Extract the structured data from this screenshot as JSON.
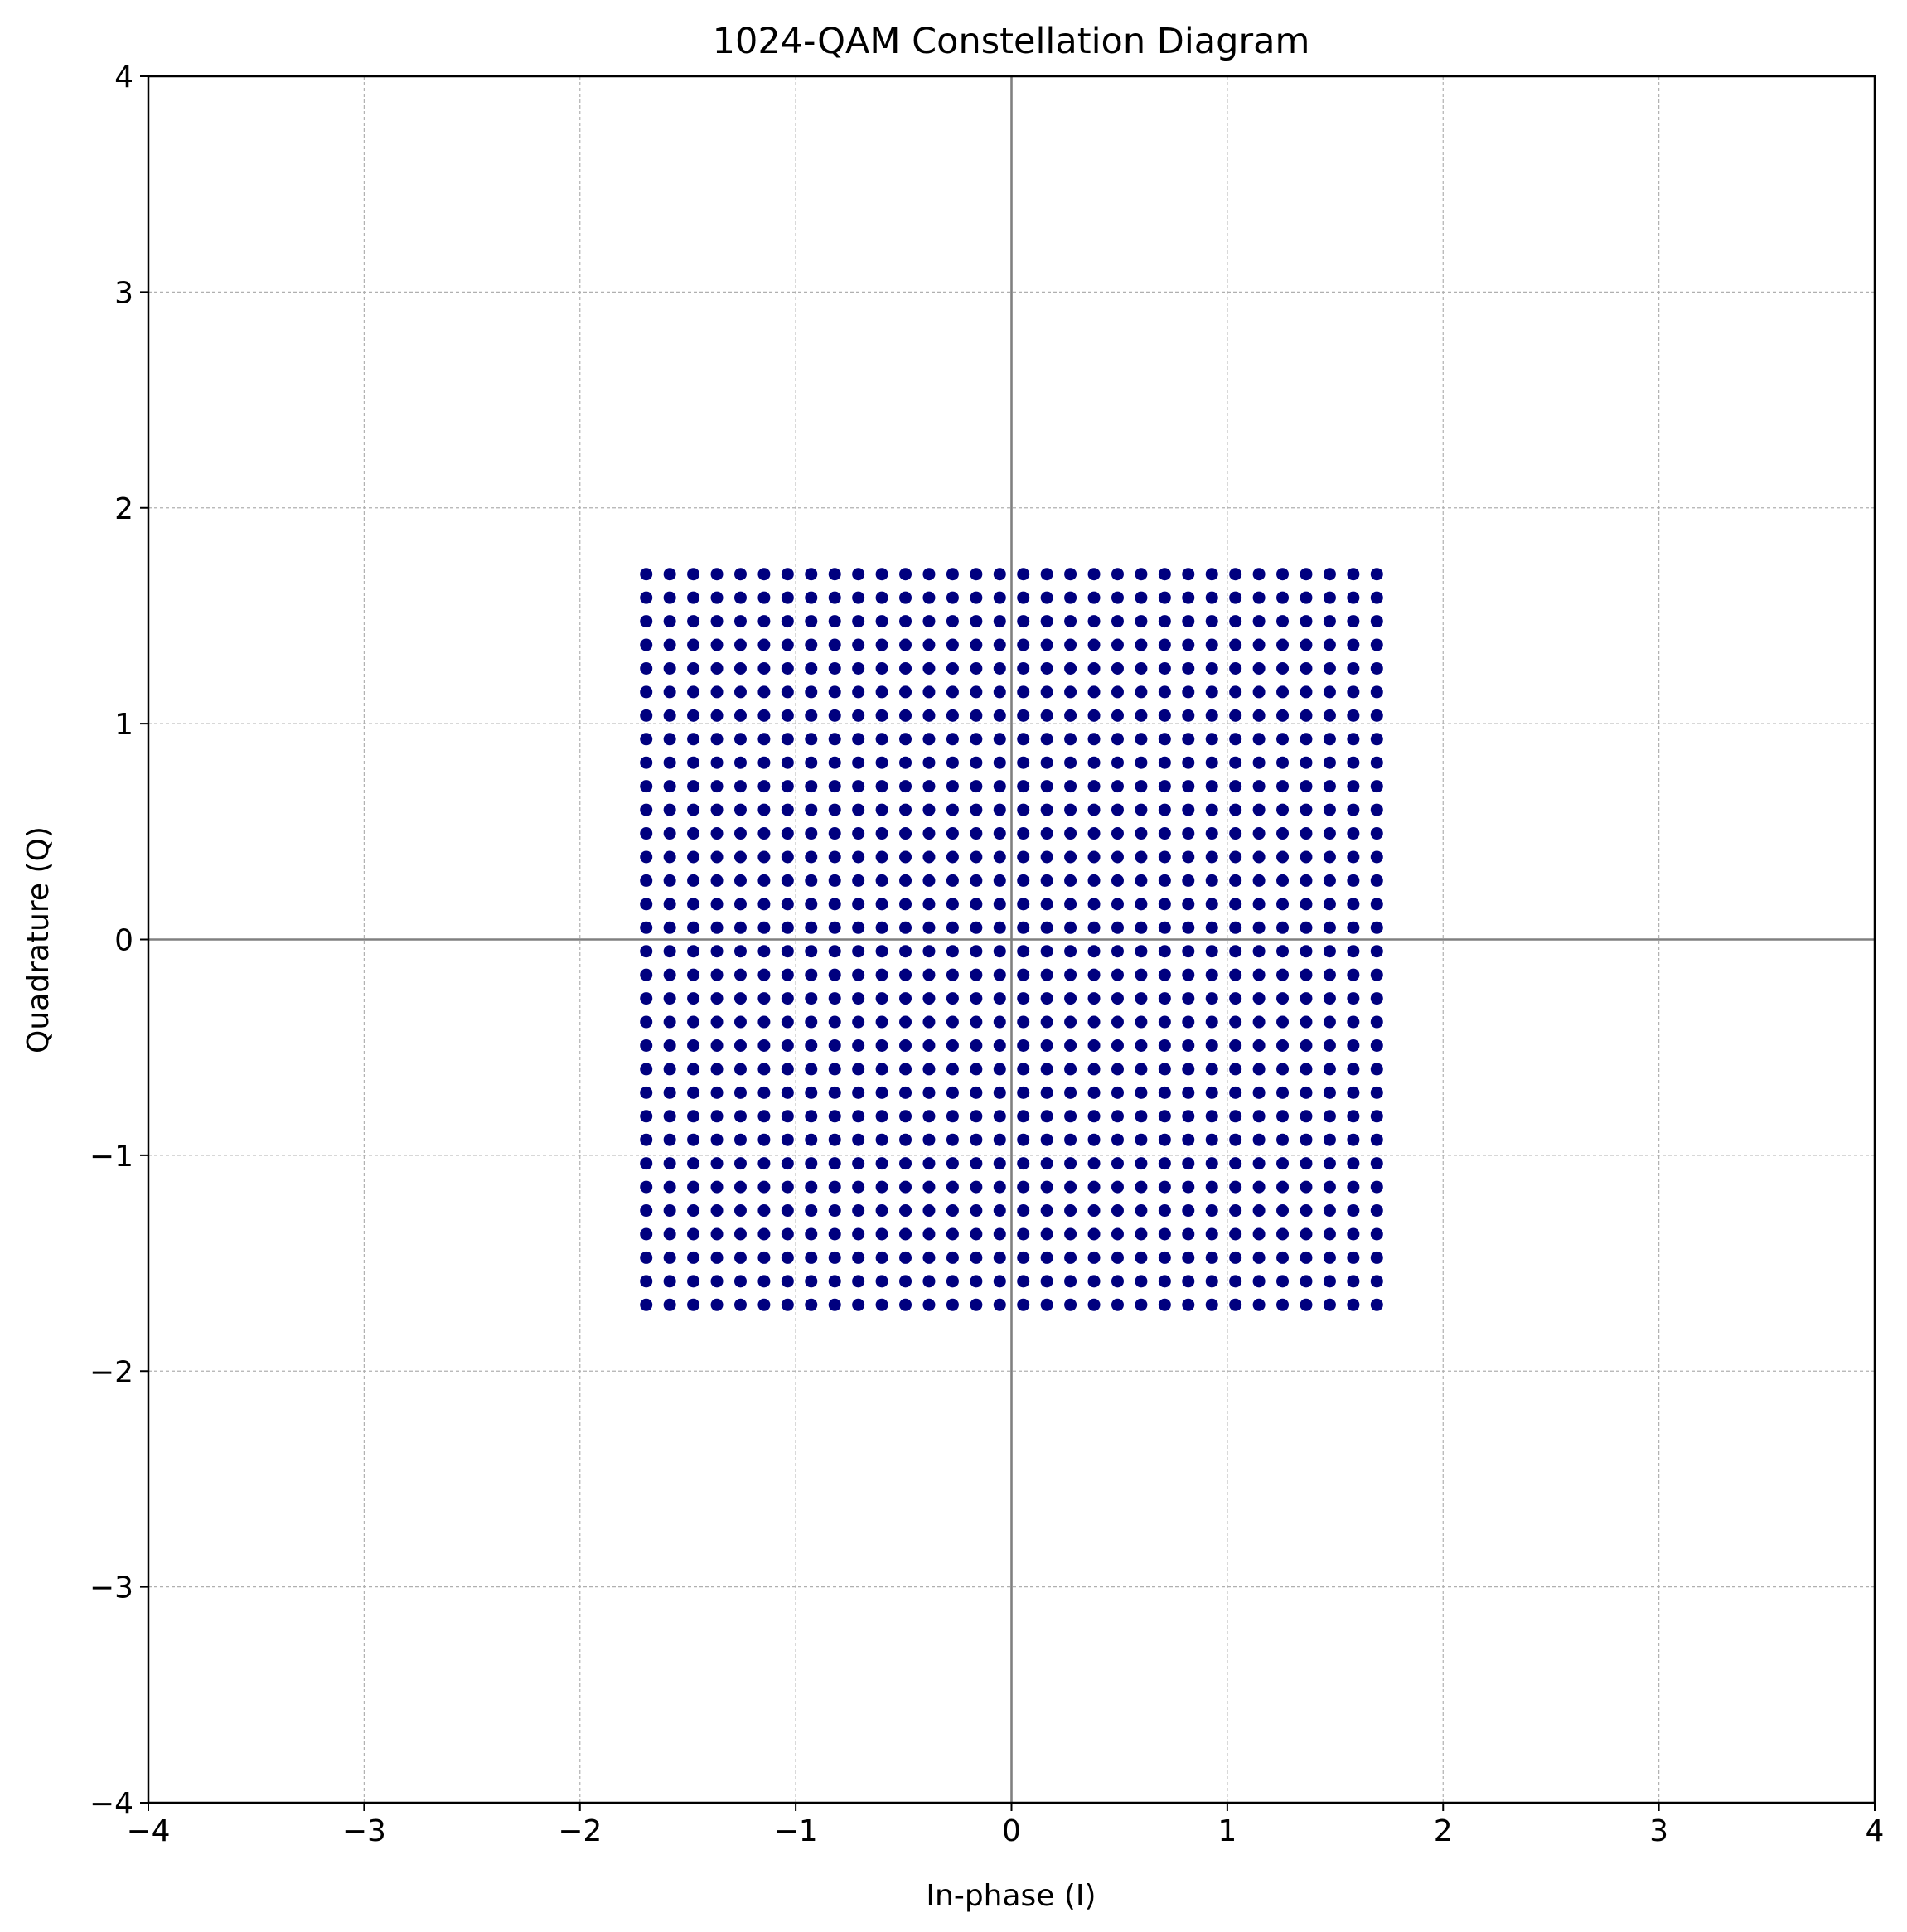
{
  "chart_data": {
    "type": "scatter",
    "title": "1024-QAM Constellation Diagram",
    "xlabel": "In-phase (I)",
    "ylabel": "Quadrature (Q)",
    "xlim": [
      -4,
      4
    ],
    "ylim": [
      -4,
      4
    ],
    "xticks": [
      -4,
      -3,
      -2,
      -1,
      0,
      1,
      2,
      3,
      4
    ],
    "yticks": [
      -4,
      -3,
      -2,
      -1,
      0,
      1,
      2,
      3,
      4
    ],
    "xtick_labels": [
      "−4",
      "−3",
      "−2",
      "−1",
      "0",
      "1",
      "2",
      "3",
      "4"
    ],
    "ytick_labels": [
      "−4",
      "−3",
      "−2",
      "−1",
      "0",
      "1",
      "2",
      "3",
      "4"
    ],
    "grid": true,
    "zero_lines": true,
    "legend": "none",
    "point_color": "#00007f",
    "grid_color": "#b0b0b0",
    "zero_line_color": "#808080",
    "levels": [
      -1.6929,
      -1.5837,
      -1.4745,
      -1.3652,
      -1.256,
      -1.1468,
      -1.0376,
      -0.9284,
      -0.8191,
      -0.7099,
      -0.6007,
      -0.4915,
      -0.3823,
      -0.273,
      -0.1638,
      -0.0546,
      0.0546,
      0.1638,
      0.273,
      0.3823,
      0.4915,
      0.6007,
      0.7099,
      0.8191,
      0.9284,
      1.0376,
      1.1468,
      1.256,
      1.3652,
      1.4745,
      1.5837,
      1.6929
    ],
    "points_note": "1024 points at every combination of (I, Q) from levels"
  }
}
